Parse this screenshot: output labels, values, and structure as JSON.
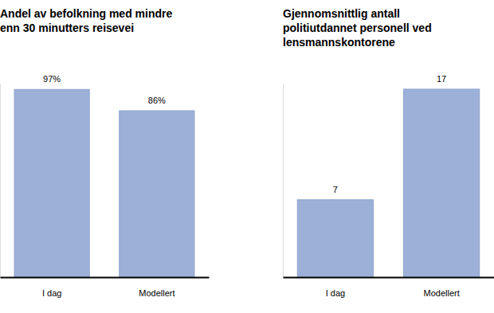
{
  "chart_data": [
    {
      "type": "bar",
      "title": "Andel av befolkning med mindre\nenn 30 minutters reisevei",
      "categories": [
        "I dag",
        "Modellert"
      ],
      "values": [
        97,
        86
      ],
      "value_labels": [
        "97%",
        "86%"
      ],
      "color": "#9db0d8",
      "ylim": [
        0,
        100
      ],
      "data_labels": true,
      "tick_labels": "x",
      "grid": false
    },
    {
      "type": "bar",
      "title": "Gjennomsnittlig antall\npolitiutdannet personell ved\nlensmannskontorene",
      "categories": [
        "I dag",
        "Modellert"
      ],
      "values": [
        7,
        17
      ],
      "color": "#9db0d8",
      "ylim": [
        0,
        17.5
      ],
      "data_labels": true,
      "tick_labels": "x",
      "grid": false
    }
  ]
}
